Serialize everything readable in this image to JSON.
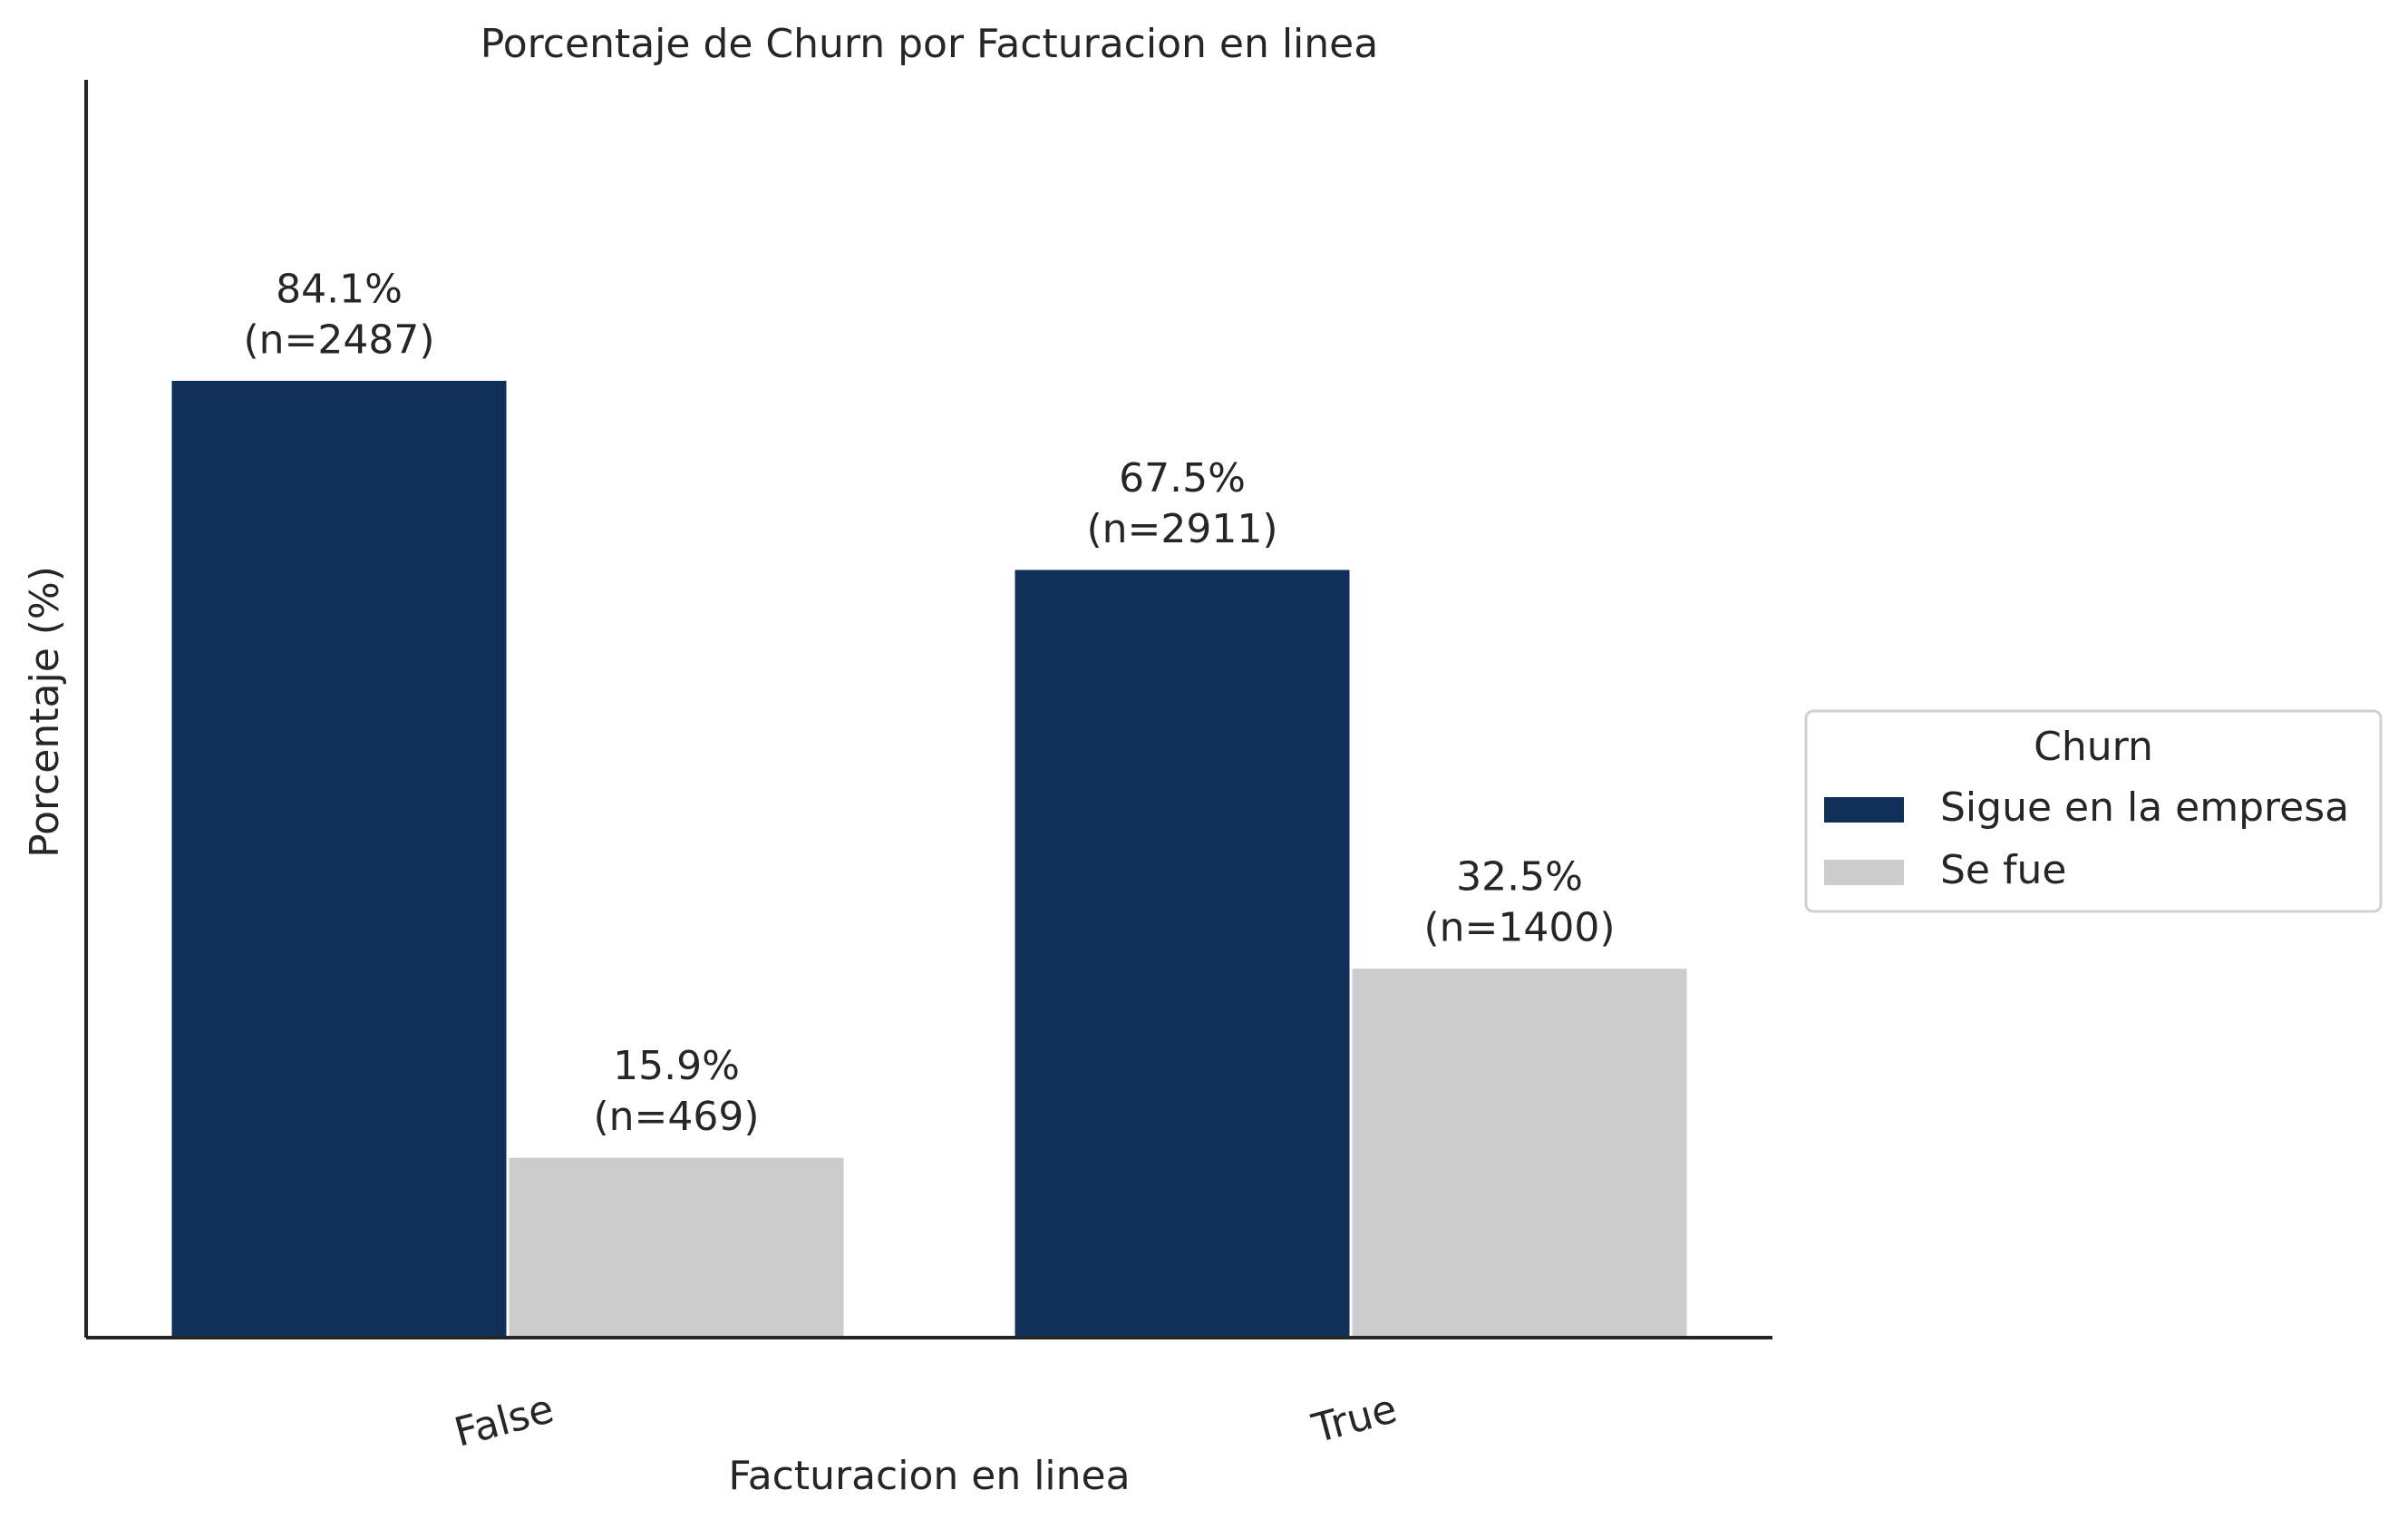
{
  "chart_data": {
    "type": "bar",
    "title": "Porcentaje de Churn por Facturacion en linea",
    "x_label": "Facturacion en linea",
    "y_label": "Porcentaje (%)",
    "categories": [
      "False",
      "True"
    ],
    "series": [
      {
        "name": "Sigue en la empresa",
        "color": "#0f3157",
        "values": [
          84.1,
          67.5
        ],
        "value_labels": [
          "84.1%",
          "67.5%"
        ],
        "n_labels": [
          "(n=2487)",
          "(n=2911)"
        ]
      },
      {
        "name": "Se fue",
        "color": "#cccccc",
        "values": [
          15.9,
          32.5
        ],
        "value_labels": [
          "15.9%",
          "32.5%"
        ],
        "n_labels": [
          "(n=469)",
          "(n=1400)"
        ]
      }
    ],
    "legend_title": "Churn",
    "legend": "right",
    "ylim": [
      0,
      110.4
    ]
  }
}
